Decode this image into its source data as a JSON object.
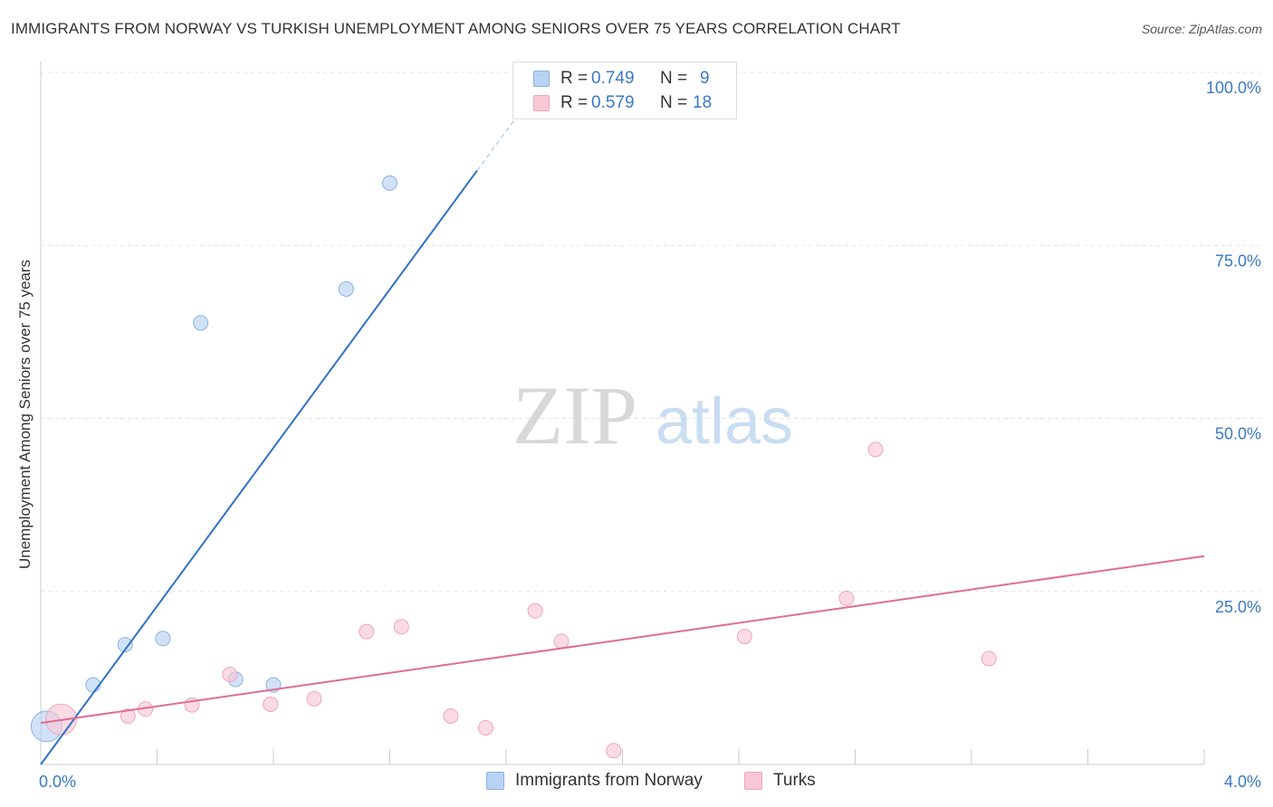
{
  "header": {
    "title": "IMMIGRANTS FROM NORWAY VS TURKISH UNEMPLOYMENT AMONG SENIORS OVER 75 YEARS CORRELATION CHART",
    "source": "Source: ZipAtlas.com"
  },
  "watermark": {
    "zip": "ZIP",
    "atlas": "atlas"
  },
  "legend_top": {
    "rows": [
      {
        "r_label": "R =",
        "r_value": "0.749",
        "n_label": "N =",
        "n_value": "9"
      },
      {
        "r_label": "R =",
        "r_value": "0.579",
        "n_label": "N =",
        "n_value": "18"
      }
    ]
  },
  "legend_bottom": {
    "items": [
      {
        "label": "Immigrants from Norway"
      },
      {
        "label": "Turks"
      }
    ]
  },
  "colors": {
    "norway_fill": "#b8d3f3",
    "norway_stroke": "#8ab1e3",
    "norway_line": "#2f72c8",
    "turks_fill": "#f8c7d6",
    "turks_stroke": "#eea5bd",
    "turks_line": "#e06c97",
    "axis_text": "#3a78c9"
  },
  "chart_data": {
    "type": "scatter",
    "title": "IMMIGRANTS FROM NORWAY VS TURKISH UNEMPLOYMENT AMONG SENIORS OVER 75 YEARS CORRELATION CHART",
    "xlabel": "",
    "ylabel": "Unemployment Among Seniors over 75 years",
    "xlim": [
      0,
      4
    ],
    "ylim": [
      0,
      100
    ],
    "x_tick_labels": [
      "0.0%",
      "4.0%"
    ],
    "y_ticks": [
      25,
      50,
      75,
      100
    ],
    "y_tick_labels": [
      "25.0%",
      "50.0%",
      "75.0%",
      "100.0%"
    ],
    "grid": true,
    "legend_position": "top-center",
    "series": [
      {
        "name": "Immigrants from Norway",
        "r": 0.749,
        "n": 9,
        "points": [
          {
            "x": 0.02,
            "y": 5.5,
            "big": true
          },
          {
            "x": 0.18,
            "y": 11.5
          },
          {
            "x": 0.29,
            "y": 17.3
          },
          {
            "x": 0.42,
            "y": 18.2
          },
          {
            "x": 0.55,
            "y": 63.8
          },
          {
            "x": 0.67,
            "y": 12.3
          },
          {
            "x": 0.8,
            "y": 11.5
          },
          {
            "x": 1.05,
            "y": 68.7
          },
          {
            "x": 1.2,
            "y": 84.0
          }
        ],
        "trend": {
          "x0": 0.0,
          "y0": 0.0,
          "x1": 1.5,
          "y1": 85.8,
          "dash_to_x": 1.7,
          "dash_to_y": 97.2
        }
      },
      {
        "name": "Turks",
        "r": 0.579,
        "n": 18,
        "points": [
          {
            "x": 0.07,
            "y": 6.5,
            "big": true
          },
          {
            "x": 0.3,
            "y": 7.0
          },
          {
            "x": 0.36,
            "y": 8.0
          },
          {
            "x": 0.52,
            "y": 8.6
          },
          {
            "x": 0.65,
            "y": 13.0
          },
          {
            "x": 0.79,
            "y": 8.7
          },
          {
            "x": 0.94,
            "y": 9.5
          },
          {
            "x": 1.12,
            "y": 19.2
          },
          {
            "x": 1.24,
            "y": 19.9
          },
          {
            "x": 1.41,
            "y": 7.0
          },
          {
            "x": 1.53,
            "y": 5.3
          },
          {
            "x": 1.7,
            "y": 22.2
          },
          {
            "x": 1.79,
            "y": 17.8
          },
          {
            "x": 1.97,
            "y": 2.0
          },
          {
            "x": 2.42,
            "y": 18.5
          },
          {
            "x": 2.77,
            "y": 24.0
          },
          {
            "x": 2.87,
            "y": 45.5
          },
          {
            "x": 3.26,
            "y": 15.3
          }
        ],
        "trend": {
          "x0": 0.0,
          "y0": 6.0,
          "x1": 4.0,
          "y1": 30.1
        }
      }
    ]
  }
}
